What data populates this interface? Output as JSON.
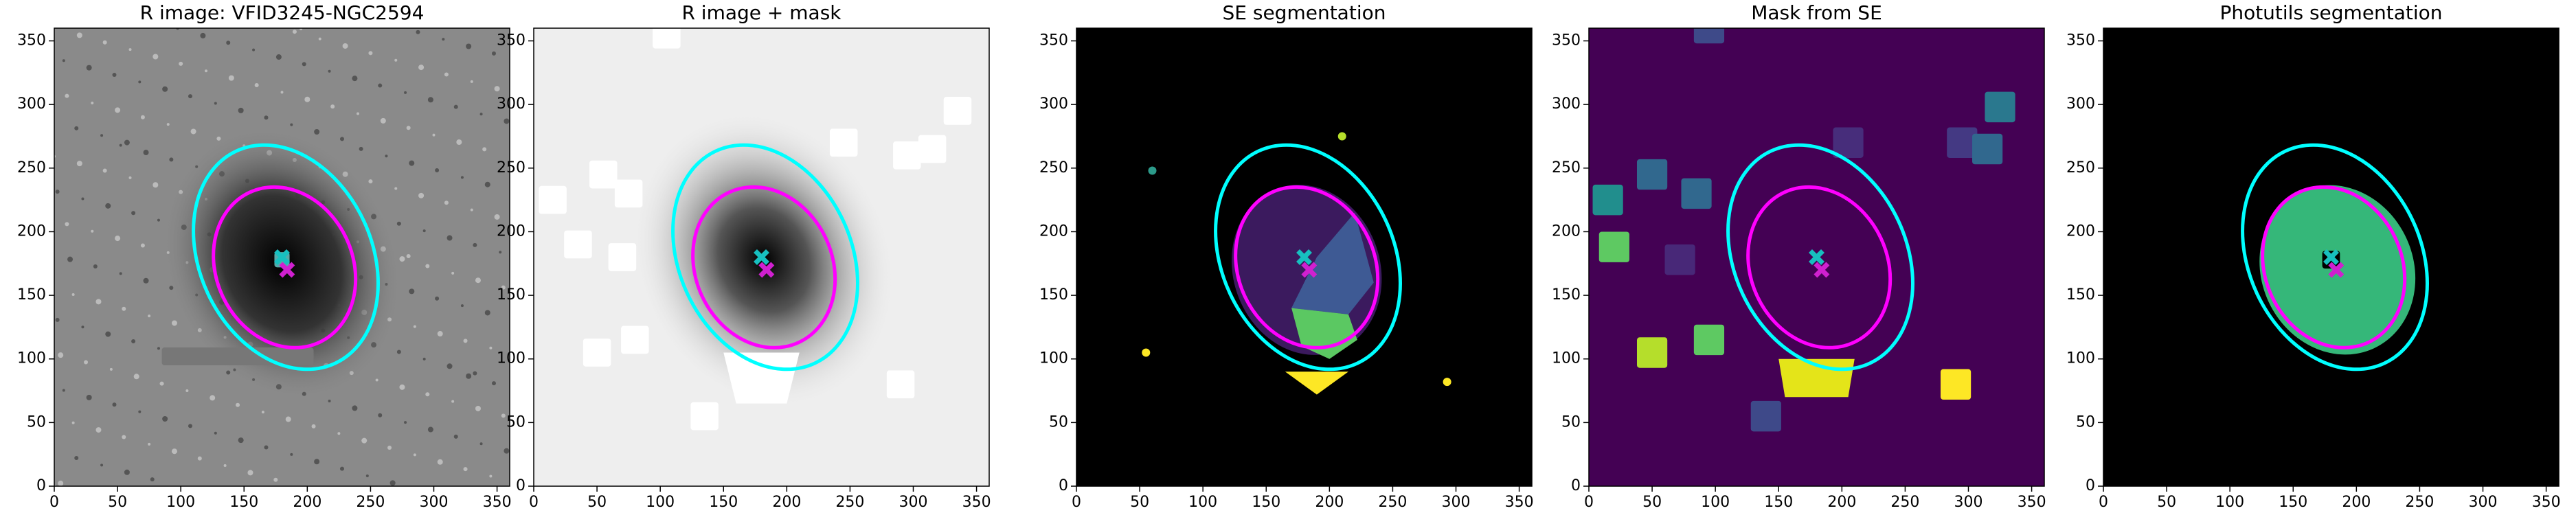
{
  "chart_data": [
    {
      "type": "image",
      "title": "R image: VFID3245-NGC2594",
      "xlim": [
        0,
        360
      ],
      "ylim": [
        0,
        360
      ],
      "xticks": [
        0,
        50,
        100,
        150,
        200,
        250,
        300,
        350
      ],
      "yticks": [
        0,
        50,
        100,
        150,
        200,
        250,
        300,
        350
      ]
    },
    {
      "type": "image",
      "title": "R image + mask",
      "xlim": [
        0,
        360
      ],
      "ylim": [
        0,
        360
      ],
      "xticks": [
        0,
        50,
        100,
        150,
        200,
        250,
        300,
        350
      ],
      "yticks": [
        0,
        50,
        100,
        150,
        200,
        250,
        300,
        350
      ]
    },
    {
      "type": "image",
      "title": "SE segmentation",
      "xlim": [
        0,
        360
      ],
      "ylim": [
        0,
        360
      ],
      "xticks": [
        0,
        50,
        100,
        150,
        200,
        250,
        300,
        350
      ],
      "yticks": [
        0,
        50,
        100,
        150,
        200,
        250,
        300,
        350
      ]
    },
    {
      "type": "image",
      "title": "Mask from SE",
      "xlim": [
        0,
        360
      ],
      "ylim": [
        0,
        360
      ],
      "xticks": [
        0,
        50,
        100,
        150,
        200,
        250,
        300,
        350
      ],
      "yticks": [
        0,
        50,
        100,
        150,
        200,
        250,
        300,
        350
      ]
    },
    {
      "type": "image",
      "title": "Photutils segmentation",
      "xlim": [
        0,
        360
      ],
      "ylim": [
        0,
        360
      ],
      "xticks": [
        0,
        50,
        100,
        150,
        200,
        250,
        300,
        350
      ],
      "yticks": [
        0,
        50,
        100,
        150,
        200,
        250,
        300,
        350
      ]
    }
  ]
}
